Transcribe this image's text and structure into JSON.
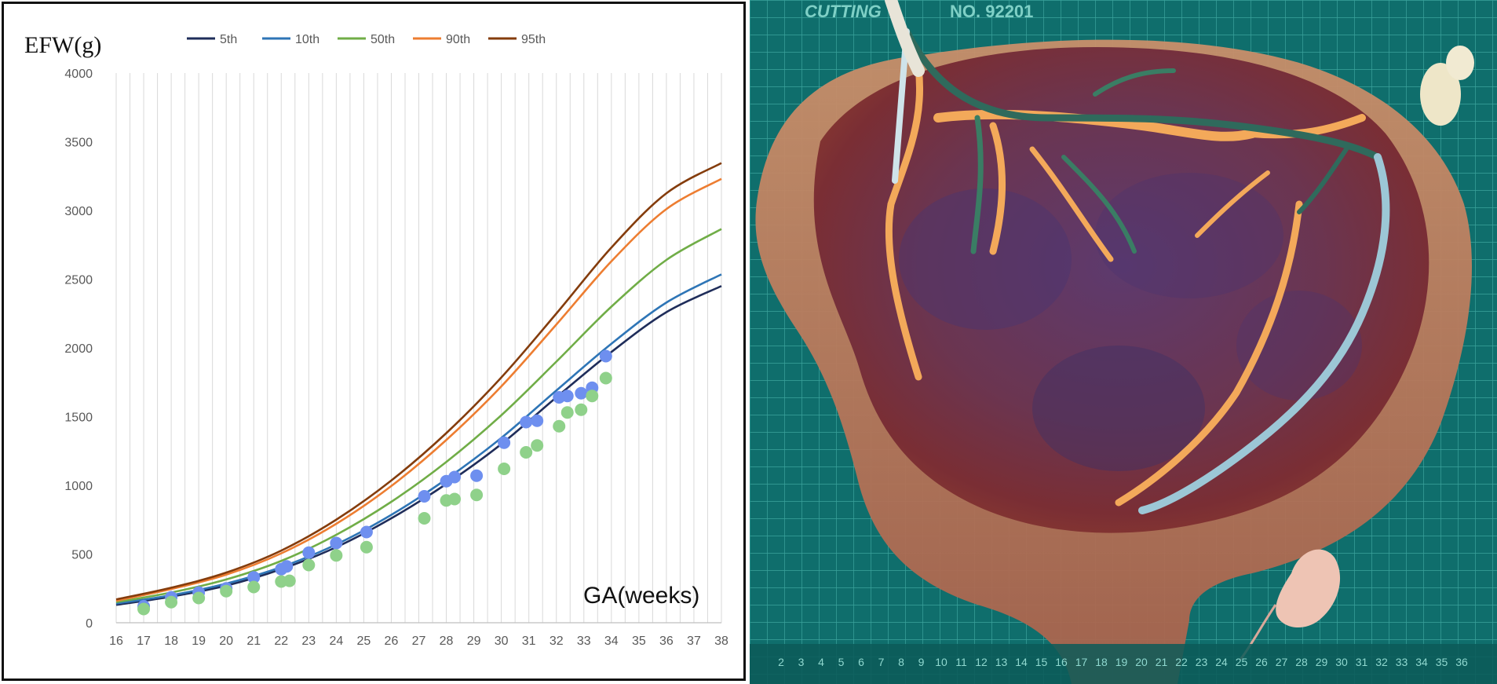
{
  "chart_data": {
    "type": "line",
    "ylabel": "EFW(g)",
    "xlabel": "GA(weeks)",
    "xlim": [
      16,
      38
    ],
    "ylim": [
      0,
      4000
    ],
    "x_ticks": [
      "16",
      "17",
      "18",
      "19",
      "20",
      "21",
      "22",
      "23",
      "24",
      "25",
      "26",
      "27",
      "28",
      "29",
      "30",
      "31",
      "32",
      "33",
      "34",
      "35",
      "36",
      "37",
      "38"
    ],
    "y_ticks": [
      "0",
      "500",
      "1000",
      "1500",
      "2000",
      "2500",
      "3000",
      "3500",
      "4000"
    ],
    "grid": "vertical",
    "legend_position": "top",
    "x": [
      16,
      18,
      20,
      22,
      24,
      26,
      28,
      30,
      32,
      34,
      36,
      38
    ],
    "series": [
      {
        "name": "5th",
        "color": "#1f2d5a",
        "values": [
          130,
          190,
          270,
          390,
          550,
          760,
          1010,
          1300,
          1640,
          1970,
          2260,
          2450
        ]
      },
      {
        "name": "10th",
        "color": "#2e75b6",
        "values": [
          140,
          200,
          285,
          405,
          570,
          785,
          1045,
          1345,
          1690,
          2030,
          2330,
          2535
        ]
      },
      {
        "name": "50th",
        "color": "#70ad47",
        "values": [
          150,
          220,
          315,
          450,
          640,
          880,
          1170,
          1510,
          1900,
          2300,
          2640,
          2865
        ]
      },
      {
        "name": "90th",
        "color": "#ed7d31",
        "values": [
          160,
          245,
          350,
          505,
          720,
          995,
          1330,
          1720,
          2170,
          2630,
          3010,
          3230
        ]
      },
      {
        "name": "95th",
        "color": "#843c0c",
        "values": [
          170,
          255,
          365,
          525,
          750,
          1035,
          1380,
          1785,
          2250,
          2730,
          3125,
          3345
        ]
      }
    ],
    "scatter": [
      {
        "color": "#6e8fef",
        "points": [
          [
            17,
            120
          ],
          [
            18,
            185
          ],
          [
            19,
            220
          ],
          [
            20,
            250
          ],
          [
            21,
            330
          ],
          [
            22,
            390
          ],
          [
            22.2,
            410
          ],
          [
            23,
            510
          ],
          [
            24,
            580
          ],
          [
            25.1,
            660
          ],
          [
            27.2,
            920
          ],
          [
            28,
            1030
          ],
          [
            28.3,
            1060
          ],
          [
            29.1,
            1070
          ],
          [
            30.1,
            1310
          ],
          [
            30.9,
            1460
          ],
          [
            31.3,
            1470
          ],
          [
            32.1,
            1640
          ],
          [
            32.4,
            1650
          ],
          [
            32.9,
            1670
          ],
          [
            33.3,
            1710
          ],
          [
            33.8,
            1940
          ]
        ]
      },
      {
        "color": "#8fd18a",
        "points": [
          [
            17,
            100
          ],
          [
            18,
            150
          ],
          [
            19,
            180
          ],
          [
            20,
            230
          ],
          [
            21,
            260
          ],
          [
            22,
            300
          ],
          [
            22.3,
            305
          ],
          [
            23,
            420
          ],
          [
            24,
            490
          ],
          [
            25.1,
            550
          ],
          [
            27.2,
            760
          ],
          [
            28,
            890
          ],
          [
            28.3,
            900
          ],
          [
            29.1,
            930
          ],
          [
            30.1,
            1120
          ],
          [
            30.9,
            1240
          ],
          [
            31.3,
            1290
          ],
          [
            32.1,
            1430
          ],
          [
            32.4,
            1530
          ],
          [
            32.9,
            1550
          ],
          [
            33.3,
            1650
          ],
          [
            33.8,
            1780
          ]
        ]
      }
    ]
  },
  "photo": {
    "description_icon": "placenta-specimen-photo",
    "mat_label_top_a": "CUTTING",
    "mat_label_top_b": "NO. 92201",
    "mat_ruler_numbers": [
      "2",
      "3",
      "4",
      "5",
      "6",
      "7",
      "8",
      "9",
      "10",
      "11",
      "12",
      "13",
      "14",
      "15",
      "16",
      "17",
      "18",
      "19",
      "20",
      "21",
      "22",
      "23",
      "24",
      "25",
      "26",
      "27",
      "28",
      "29",
      "30",
      "31",
      "32",
      "33",
      "34",
      "35",
      "36"
    ]
  }
}
